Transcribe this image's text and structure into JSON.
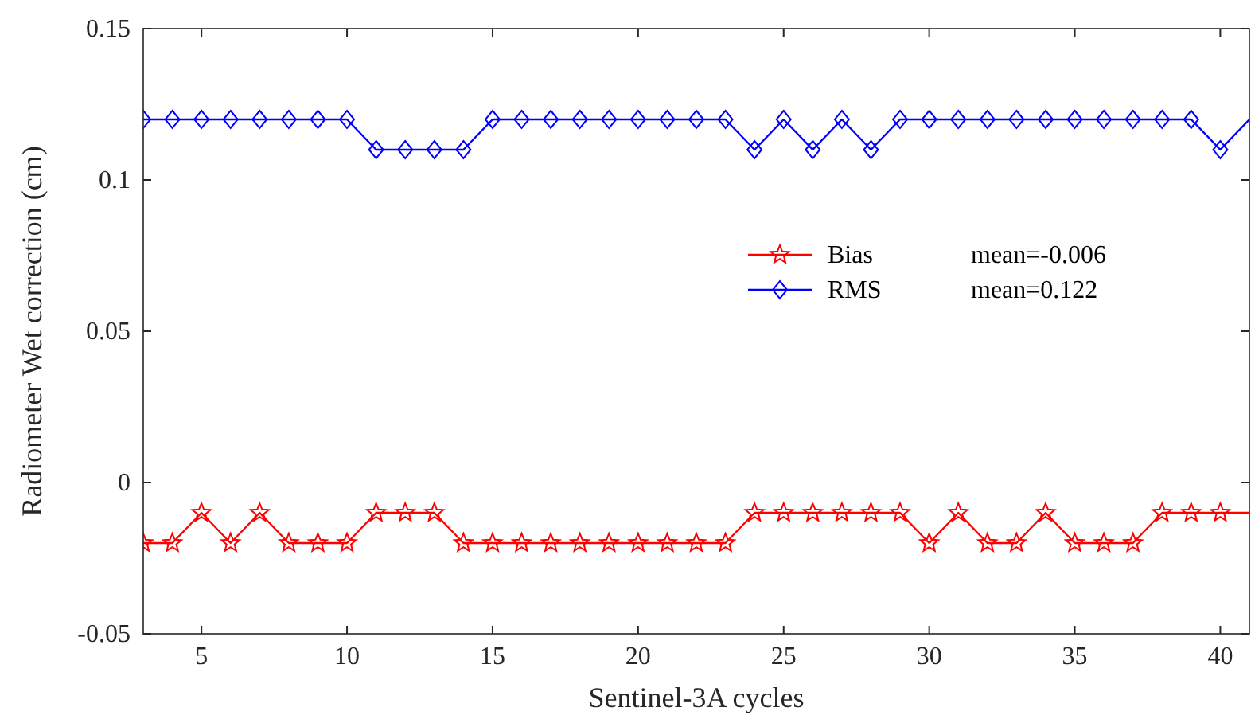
{
  "chart_data": {
    "type": "line",
    "xlabel": "Sentinel-3A cycles",
    "ylabel": "Radiometer Wet correction (cm)",
    "x": [
      3,
      4,
      5,
      6,
      7,
      8,
      9,
      10,
      11,
      12,
      13,
      14,
      15,
      16,
      17,
      18,
      19,
      20,
      21,
      22,
      23,
      24,
      25,
      26,
      27,
      28,
      29,
      30,
      31,
      32,
      33,
      34,
      35,
      36,
      37,
      38,
      39,
      40,
      41
    ],
    "series": [
      {
        "name": "Bias",
        "color": "#ff0000",
        "marker": "star",
        "values": [
          -0.02,
          -0.02,
          -0.01,
          -0.02,
          -0.01,
          -0.02,
          -0.02,
          -0.02,
          -0.01,
          -0.01,
          -0.01,
          -0.02,
          -0.02,
          -0.02,
          -0.02,
          -0.02,
          -0.02,
          -0.02,
          -0.02,
          -0.02,
          -0.02,
          -0.01,
          -0.01,
          -0.01,
          -0.01,
          -0.01,
          -0.01,
          -0.02,
          -0.01,
          -0.02,
          -0.02,
          -0.01,
          -0.02,
          -0.02,
          -0.02,
          -0.01,
          -0.01,
          -0.01,
          -0.01
        ]
      },
      {
        "name": "RMS",
        "color": "#0000ff",
        "marker": "diamond",
        "values": [
          0.12,
          0.12,
          0.12,
          0.12,
          0.12,
          0.12,
          0.12,
          0.12,
          0.11,
          0.11,
          0.11,
          0.11,
          0.12,
          0.12,
          0.12,
          0.12,
          0.12,
          0.12,
          0.12,
          0.12,
          0.12,
          0.11,
          0.12,
          0.11,
          0.12,
          0.11,
          0.12,
          0.12,
          0.12,
          0.12,
          0.12,
          0.12,
          0.12,
          0.12,
          0.12,
          0.12,
          0.12,
          0.11,
          0.12
        ]
      }
    ],
    "annotations": [
      "mean=-0.006",
      "mean=0.122"
    ],
    "xlim": [
      3,
      41
    ],
    "xticks": [
      5,
      10,
      15,
      20,
      25,
      30,
      35,
      40
    ],
    "ylim": [
      -0.05,
      0.15
    ],
    "yticks": [
      {
        "value": -0.05,
        "label": "-0.05"
      },
      0,
      {
        "value": 0.05,
        "label": "0.05"
      },
      {
        "value": 0.1,
        "label": "0.1"
      },
      {
        "value": 0.15,
        "label": "0.15"
      }
    ],
    "legend": "right",
    "grid": false,
    "line_style": "solid"
  }
}
